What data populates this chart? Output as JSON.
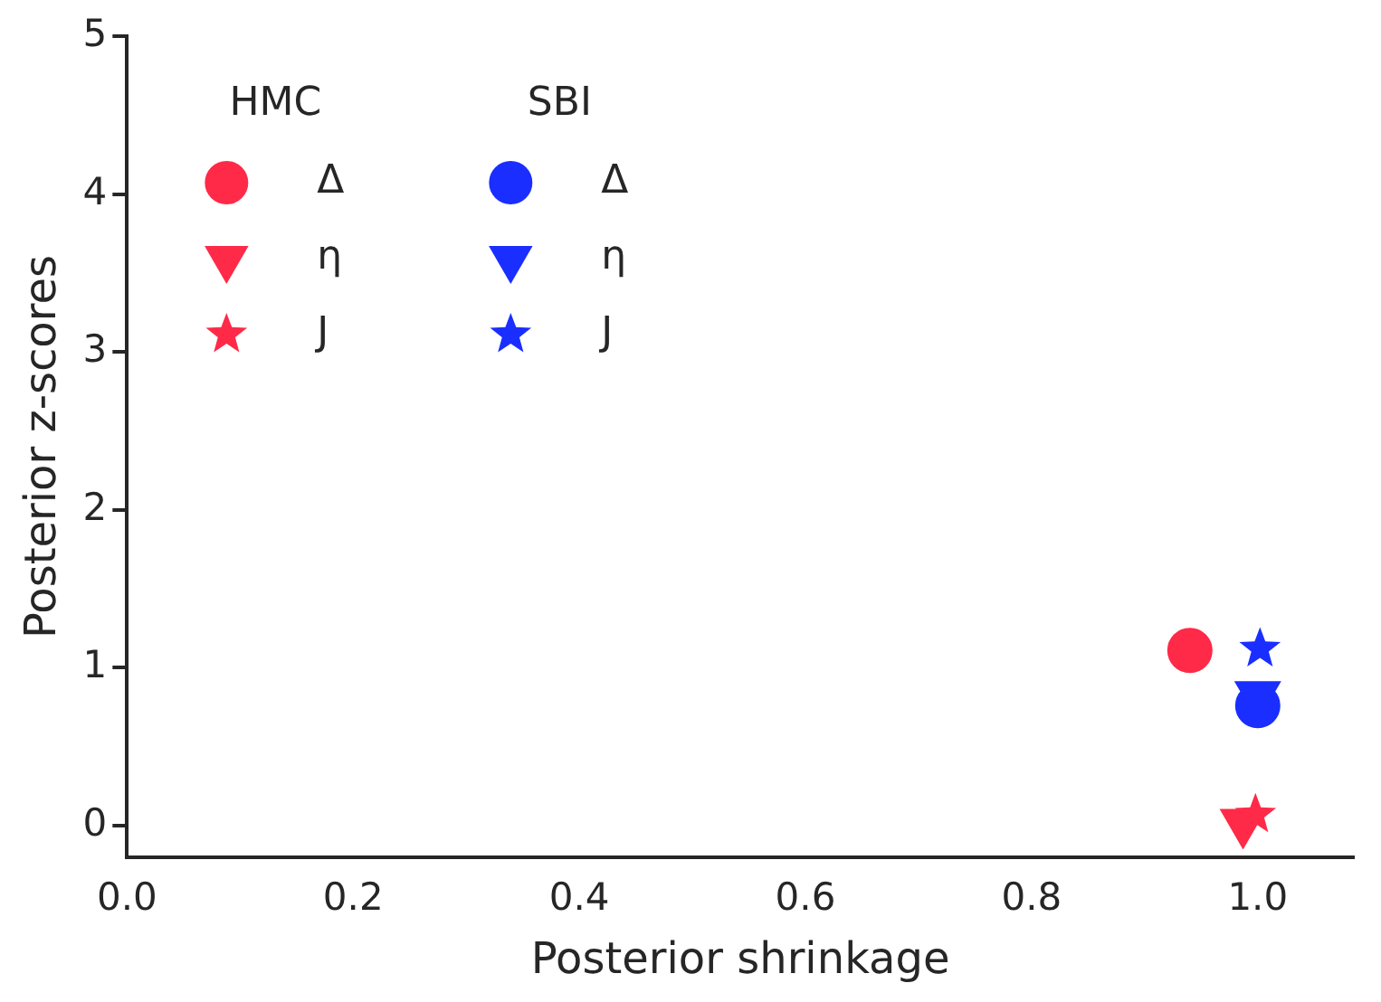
{
  "chart_data": {
    "type": "scatter",
    "xlabel": "Posterior shrinkage",
    "ylabel": "Posterior z-scores",
    "xlim": [
      0,
      1.085
    ],
    "ylim": [
      -0.2,
      5
    ],
    "xticks": [
      {
        "value": 0,
        "label": "0.0"
      },
      {
        "value": 0.2,
        "label": "0.2"
      },
      {
        "value": 0.4,
        "label": "0.4"
      },
      {
        "value": 0.6,
        "label": "0.6"
      },
      {
        "value": 0.8,
        "label": "0.8"
      },
      {
        "value": 1,
        "label": "1.0"
      }
    ],
    "yticks": [
      0,
      1,
      2,
      3,
      4,
      5
    ],
    "grid": false,
    "legend": "top left",
    "annotations": [
      "HMC",
      "SBI"
    ],
    "series": [
      {
        "name": "Δ",
        "color": "#ff2a48",
        "marker": "circle",
        "x": [
          0.94
        ],
        "values": [
          1.11
        ]
      },
      {
        "name": "η",
        "color": "#ff2a48",
        "marker": "triangle",
        "x": [
          0.987
        ],
        "values": [
          0.02
        ]
      },
      {
        "name": "J",
        "color": "#ff2a48",
        "marker": "star",
        "x": [
          0.998
        ],
        "values": [
          0.07
        ]
      },
      {
        "name": "Δ",
        "color": "#1a2eff",
        "marker": "circle",
        "x": [
          1.0
        ],
        "values": [
          0.76
        ]
      },
      {
        "name": "η",
        "color": "#1a2eff",
        "marker": "triangle",
        "x": [
          1.0
        ],
        "values": [
          0.83
        ]
      },
      {
        "name": "J",
        "color": "#1a2eff",
        "marker": "star",
        "x": [
          1.002
        ],
        "values": [
          1.12
        ]
      }
    ]
  }
}
